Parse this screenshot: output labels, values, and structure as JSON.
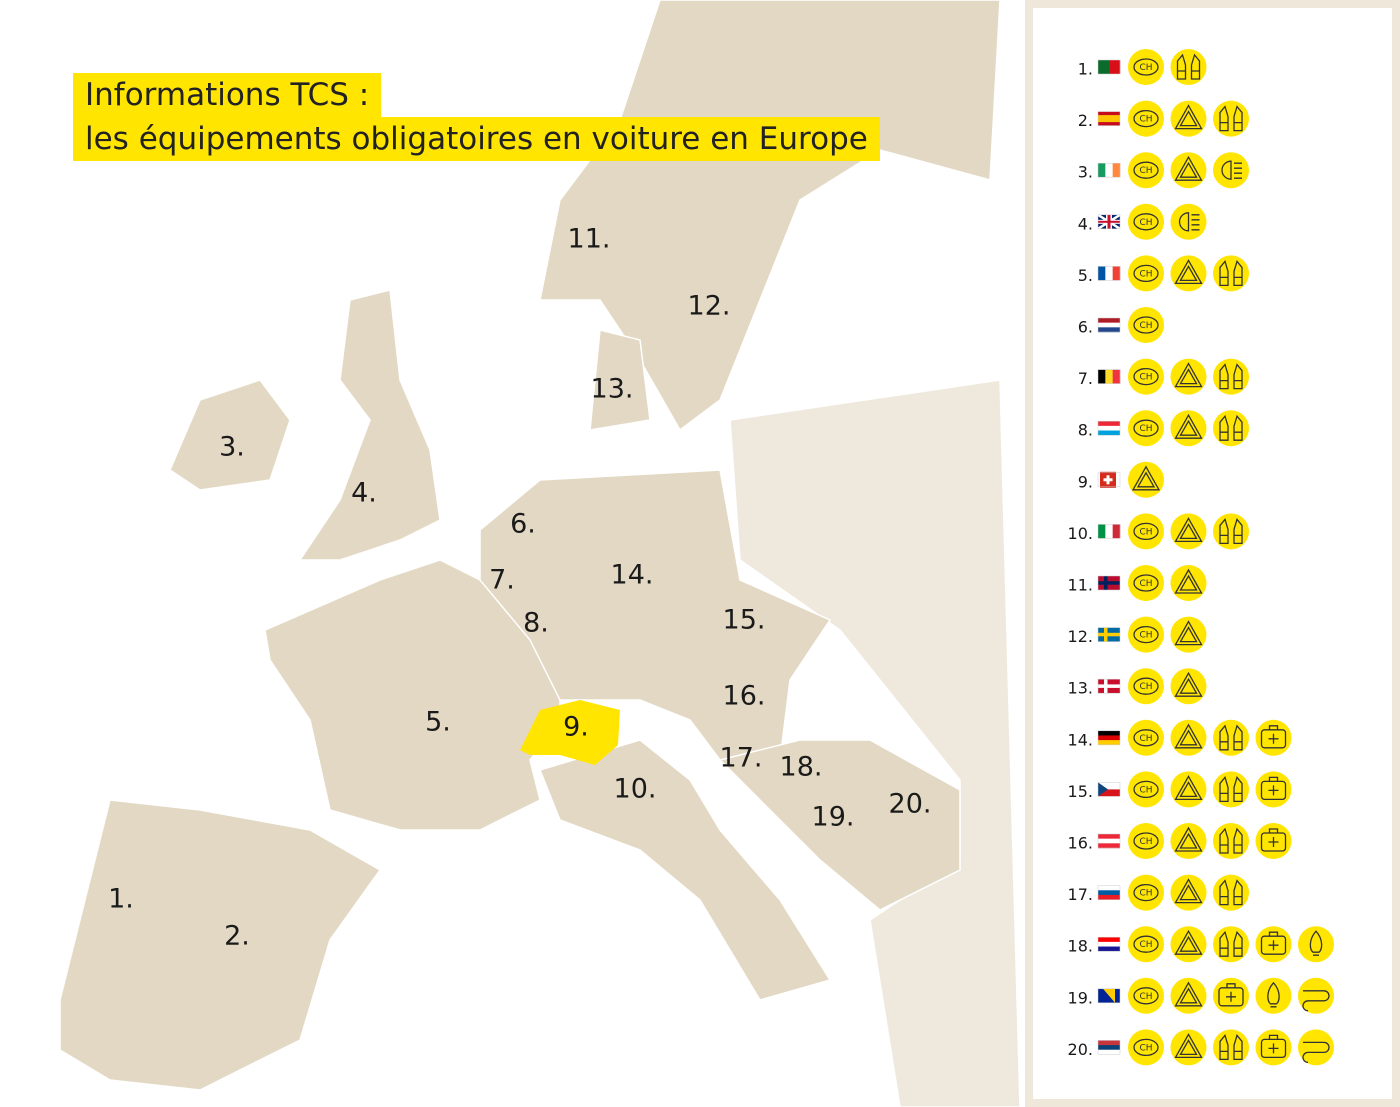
{
  "header": {
    "title_line1": "Informations TCS :",
    "title_line2": "les équipements obligatoires en voiture en Europe"
  },
  "countries": [
    "1.",
    "2.",
    "3.",
    "4.",
    "5.",
    "6.",
    "7.",
    "8.",
    "9.",
    "10.",
    "11.",
    "12.",
    "13.",
    "14.",
    "15.",
    "16.",
    "17.",
    "18.",
    "19.",
    "20."
  ],
  "legend": {
    "badge_text": "CH"
  }
}
